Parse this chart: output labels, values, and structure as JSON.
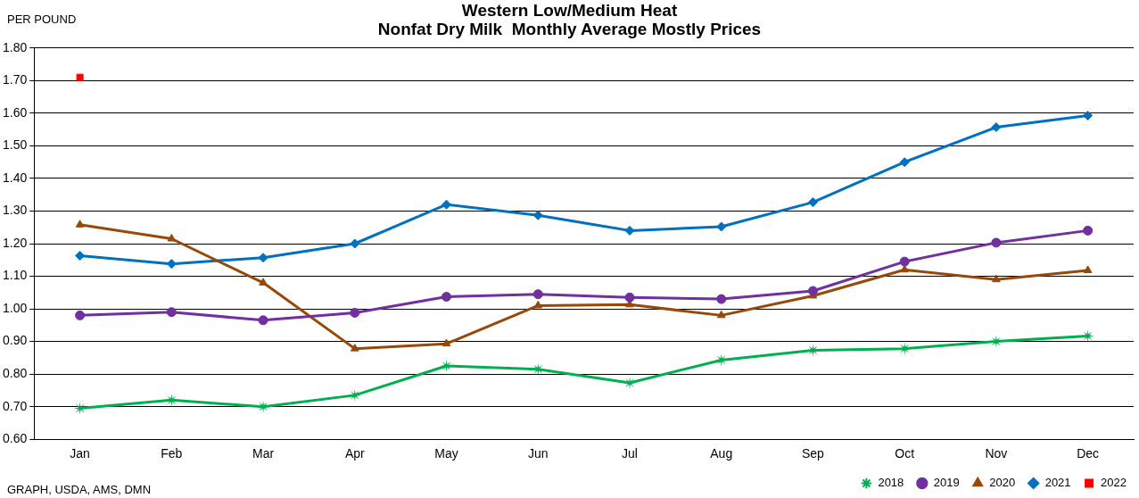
{
  "chart_data": {
    "type": "line",
    "title": "Western Low/Medium Heat\nNonfat Dry Milk  Monthly Average Mostly Prices",
    "ylabel": "PER POUND",
    "annotations": [
      "GRAPH, USDA, AMS, DMN"
    ],
    "categories": [
      "Jan",
      "Feb",
      "Mar",
      "Apr",
      "May",
      "Jun",
      "Jul",
      "Aug",
      "Sep",
      "Oct",
      "Nov",
      "Dec"
    ],
    "series": [
      {
        "name": "2018",
        "color": "#00b050",
        "marker": "star",
        "values": [
          0.695,
          0.72,
          0.7,
          0.735,
          0.825,
          0.815,
          0.773,
          0.843,
          0.873,
          0.878,
          0.9,
          0.917
        ]
      },
      {
        "name": "2019",
        "color": "#7030a0",
        "marker": "circle",
        "values": [
          0.98,
          0.99,
          0.965,
          0.988,
          1.037,
          1.045,
          1.035,
          1.03,
          1.055,
          1.145,
          1.203,
          1.24
        ]
      },
      {
        "name": "2020",
        "color": "#984807",
        "marker": "triangle",
        "values": [
          1.258,
          1.215,
          1.08,
          0.878,
          0.893,
          1.01,
          1.013,
          0.98,
          1.04,
          1.12,
          1.09,
          1.118
        ]
      },
      {
        "name": "2021",
        "color": "#0070c0",
        "marker": "diamond",
        "values": [
          1.163,
          1.138,
          1.157,
          1.2,
          1.32,
          1.287,
          1.24,
          1.252,
          1.327,
          1.45,
          1.557,
          1.593
        ]
      },
      {
        "name": "2022",
        "color": "#ff0000",
        "marker": "square",
        "values": [
          1.71,
          null,
          null,
          null,
          null,
          null,
          null,
          null,
          null,
          null,
          null,
          null
        ]
      }
    ],
    "ylim": [
      0.6,
      1.8
    ],
    "yticks": [
      {
        "value": 0.6,
        "label": "0.60"
      },
      {
        "value": 0.7,
        "label": "0.70"
      },
      {
        "value": 0.8,
        "label": "0.80"
      },
      {
        "value": 0.9,
        "label": "0.90"
      },
      {
        "value": 1.0,
        "label": "1.00"
      },
      {
        "value": 1.1,
        "label": "1.10"
      },
      {
        "value": 1.2,
        "label": "1.20"
      },
      {
        "value": 1.3,
        "label": "1.30"
      },
      {
        "value": 1.4,
        "label": "1.40"
      },
      {
        "value": 1.5,
        "label": "1.50"
      },
      {
        "value": 1.6,
        "label": "1.60"
      },
      {
        "value": 1.7,
        "label": "1.70"
      },
      {
        "value": 1.8,
        "label": "1.80"
      }
    ],
    "grid": "y",
    "legend": "bottom right",
    "line_style": "solid"
  }
}
